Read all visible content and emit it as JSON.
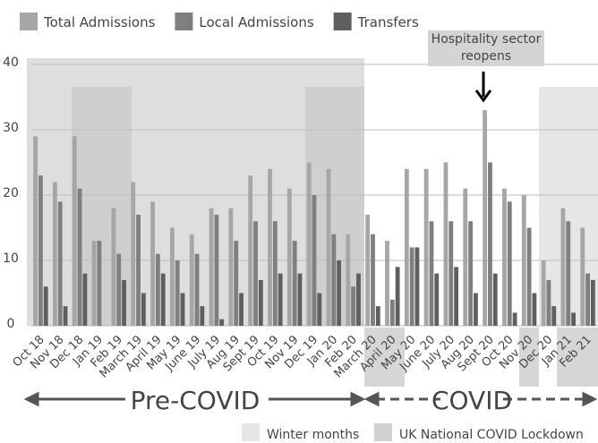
{
  "chart_data": {
    "type": "bar",
    "categories": [
      "Oct 18",
      "Nov 18",
      "Dec 18",
      "Jan 19",
      "Feb 19",
      "March 19",
      "April 19",
      "May 19",
      "June 19",
      "July 19",
      "Aug 19",
      "Sept 19",
      "Oct 19",
      "Nov 19",
      "Dec 19",
      "Jan 20",
      "Feb 20",
      "March 20",
      "April 20",
      "May 20",
      "June 20",
      "July 20",
      "Aug 20",
      "Sept 20",
      "Oct 20",
      "Nov 20",
      "Dec 20",
      "Jan 21",
      "Feb 21"
    ],
    "series": [
      {
        "name": "Total Admissions",
        "color": "#a6a6a6",
        "values": [
          29,
          22,
          29,
          13,
          18,
          22,
          19,
          15,
          14,
          18,
          18,
          23,
          24,
          21,
          25,
          24,
          14,
          17,
          13,
          24,
          24,
          25,
          21,
          33,
          21,
          20,
          10,
          18,
          15
        ]
      },
      {
        "name": "Local Admissions",
        "color": "#7f7f7f",
        "values": [
          23,
          19,
          21,
          13,
          11,
          17,
          11,
          10,
          11,
          17,
          13,
          16,
          16,
          13,
          20,
          14,
          6,
          14,
          4,
          12,
          16,
          16,
          16,
          25,
          19,
          15,
          7,
          16,
          8
        ]
      },
      {
        "name": "Transfers",
        "color": "#5f5f5f",
        "values": [
          6,
          3,
          8,
          0,
          7,
          5,
          8,
          5,
          3,
          1,
          5,
          7,
          8,
          8,
          5,
          10,
          8,
          3,
          9,
          12,
          8,
          9,
          5,
          8,
          2,
          5,
          3,
          2,
          7
        ]
      }
    ],
    "ylim": [
      0,
      40
    ],
    "yticks": [
      0,
      10,
      20,
      30,
      40
    ],
    "grid": true,
    "annotation": "Hospitality sector reopens",
    "periods": [
      "Pre-COVID",
      "COVID"
    ],
    "shading_legend": [
      "Winter months",
      "UK National COVID Lockdown"
    ]
  }
}
